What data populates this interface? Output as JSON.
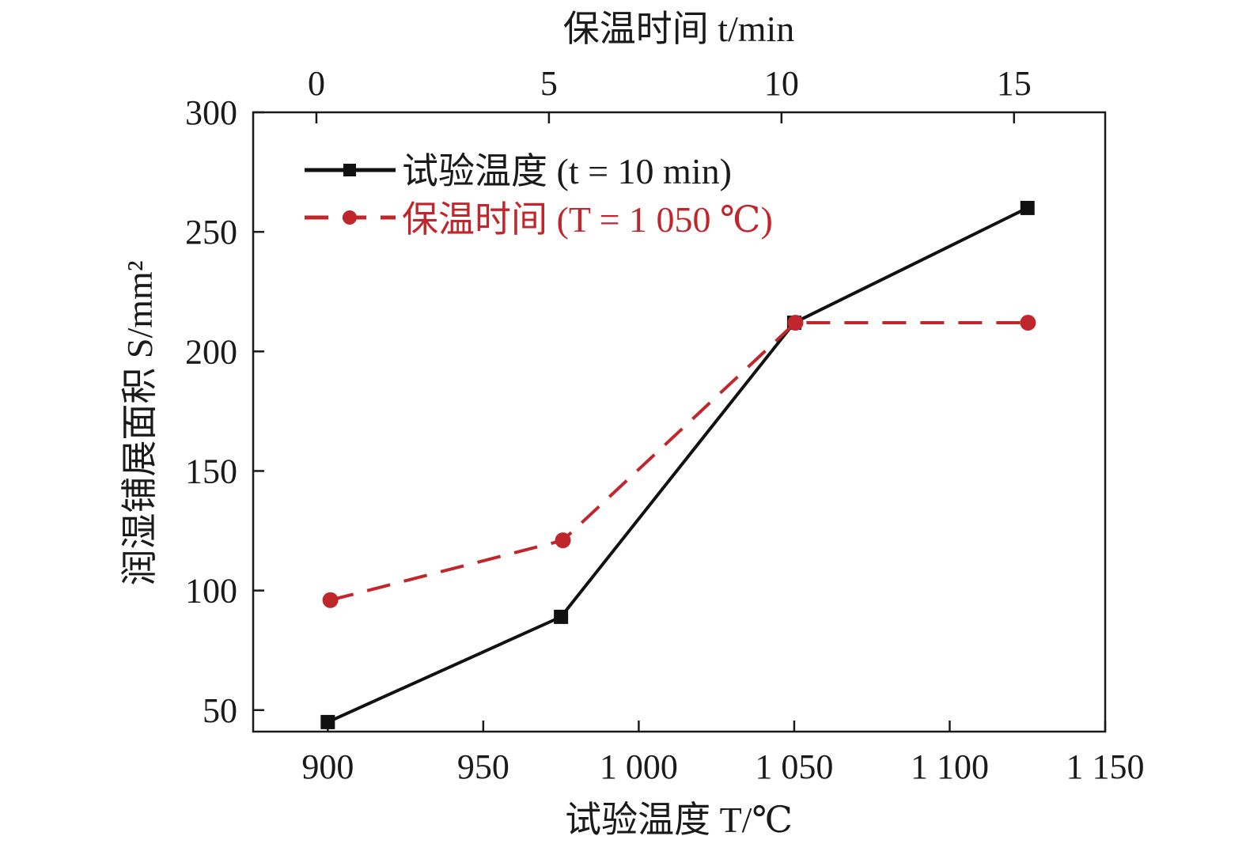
{
  "chart_data": {
    "type": "line",
    "xlabel": "试验温度 T/℃",
    "x2label": "保温时间 t/min",
    "ylabel": "润湿铺展面积 S/mm²",
    "xlim": [
      876,
      1150
    ],
    "x2lim": [
      -1.36,
      16.96
    ],
    "ylim": [
      41,
      300
    ],
    "xticks": [
      900,
      950,
      1000,
      1050,
      1100,
      1150
    ],
    "xtick_labels": [
      "900",
      "950",
      "1 000",
      "1 050",
      "1 100",
      "1 150"
    ],
    "x2ticks": [
      0,
      5,
      10,
      15
    ],
    "x2tick_labels": [
      "0",
      "5",
      "10",
      "15"
    ],
    "yticks": [
      50,
      100,
      150,
      200,
      250,
      300
    ],
    "ytick_labels": [
      "50",
      "100",
      "150",
      "200",
      "250",
      "300"
    ],
    "grid": false,
    "legend_position": "top-left",
    "series": [
      {
        "name": "试验温度 (t = 10 min)",
        "axis": "bottom",
        "color": "#111111",
        "marker": "square",
        "dash": "solid",
        "x": [
          900,
          975,
          1050,
          1125
        ],
        "y": [
          45,
          89,
          212,
          260
        ]
      },
      {
        "name": "保温时间 (T = 1 050 ℃)",
        "axis": "top",
        "color": "#c0272d",
        "marker": "circle",
        "dash": "dashed",
        "x": [
          0.3,
          5.3,
          10.3,
          15.3
        ],
        "y": [
          96,
          121,
          212,
          212
        ]
      }
    ]
  }
}
